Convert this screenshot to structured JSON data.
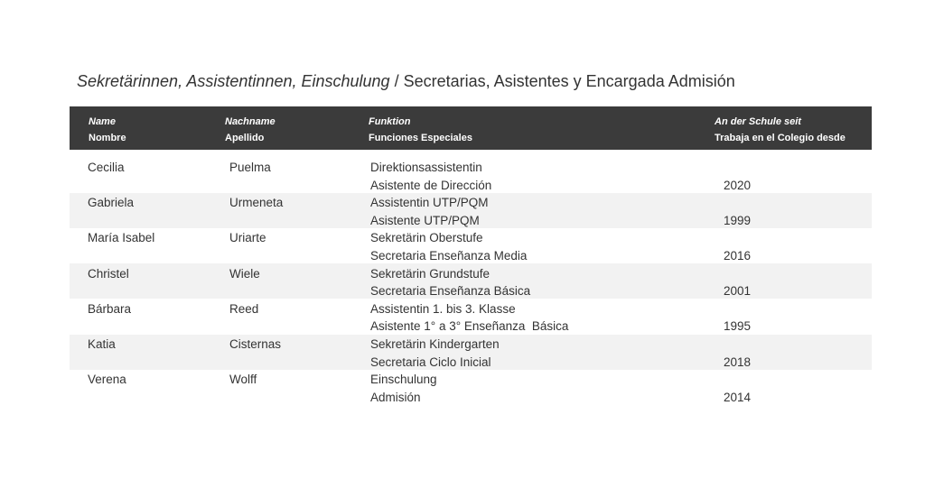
{
  "title": {
    "italic": "Sekretärinnen, Assistentinnen, Einschulung",
    "normal": "/ Secretarias, Asistentes y Encargada Admisión"
  },
  "table": {
    "header": [
      {
        "de": "Name",
        "es": "Nombre"
      },
      {
        "de": "Nachname",
        "es": "Apellido"
      },
      {
        "de": "Funktion",
        "es": "Funciones Especiales"
      },
      {
        "de": "An der Schule seit",
        "es": "Trabaja en el Colegio desde"
      }
    ],
    "rows": [
      [
        "Cecilia",
        "Puelma",
        "Direktionsassistentin",
        "Asistente de Dirección",
        2020
      ],
      [
        "Gabriela",
        "Urmeneta",
        "Assistentin UTP/PQM",
        "Asistente UTP/PQM",
        1999
      ],
      [
        "María Isabel",
        "Uriarte",
        "Sekretärin Oberstufe",
        "Secretaria Enseñanza Media",
        2016
      ],
      [
        "Christel",
        "Wiele",
        "Sekretärin Grundstufe",
        "Secretaria Enseñanza Básica",
        2001
      ],
      [
        "Bárbara",
        "Reed",
        "Assistentin 1. bis 3. Klasse",
        "Asistente 1° a 3° Enseñanza  Básica",
        1995
      ],
      [
        "Katia",
        "Cisternas",
        "Sekretärin Kindergarten",
        "Secretaria Ciclo Inicial",
        2018
      ],
      [
        "Verena",
        "Wolff",
        "Einschulung",
        "Admisión",
        2014
      ]
    ]
  }
}
